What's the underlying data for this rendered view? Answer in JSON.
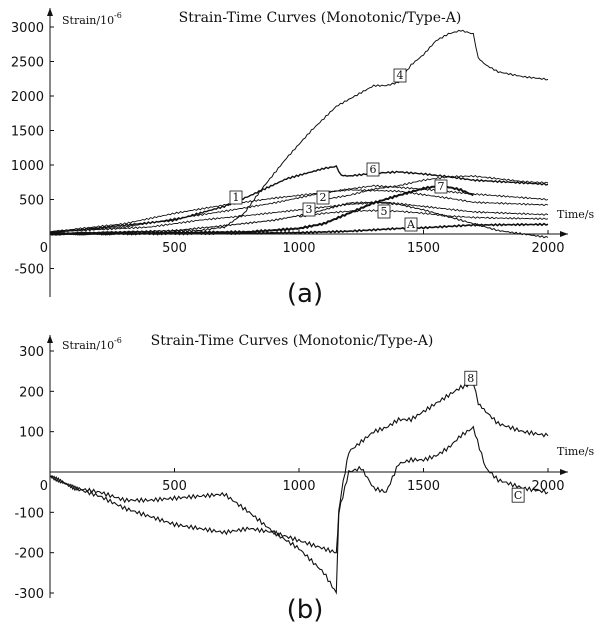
{
  "chart_data": [
    {
      "type": "line",
      "panel_label": "(a)",
      "title": "Strain-Time Curves (Monotonic/Type-A)",
      "ylabel": "Strain/10",
      "ylabel_exp": "-6",
      "xlabel": "Time/s",
      "xlim": [
        0,
        2000
      ],
      "ylim": [
        -800,
        3200
      ],
      "x_ticks": [
        500,
        1000,
        1500,
        2000
      ],
      "y_ticks": [
        -500,
        0,
        500,
        1000,
        1500,
        2000,
        2500,
        3000
      ],
      "series": [
        {
          "name": "1",
          "weight": 0.9,
          "x": [
            0,
            300,
            500,
            700,
            900,
            1100,
            1200,
            1400,
            1600,
            1700,
            2000
          ],
          "y": [
            30,
            150,
            300,
            420,
            520,
            600,
            640,
            620,
            520,
            460,
            420
          ]
        },
        {
          "name": "2",
          "weight": 0.9,
          "x": [
            0,
            300,
            500,
            700,
            900,
            1100,
            1200,
            1300,
            1500,
            1700,
            2000
          ],
          "y": [
            30,
            100,
            220,
            330,
            450,
            600,
            650,
            700,
            650,
            580,
            500
          ]
        },
        {
          "name": "3",
          "weight": 0.9,
          "x": [
            0,
            400,
            600,
            800,
            1000,
            1200,
            1350,
            1500,
            1700,
            2000
          ],
          "y": [
            30,
            100,
            200,
            270,
            350,
            430,
            460,
            400,
            320,
            280
          ]
        },
        {
          "name": "4",
          "weight": 1.0,
          "x": [
            0,
            600,
            700,
            780,
            850,
            950,
            1050,
            1150,
            1250,
            1300,
            1350,
            1400,
            1450,
            1500,
            1550,
            1600,
            1650,
            1700,
            1720,
            1750,
            1800,
            1900,
            2000
          ],
          "y": [
            10,
            50,
            100,
            300,
            650,
            1100,
            1500,
            1850,
            2050,
            2150,
            2150,
            2200,
            2450,
            2600,
            2800,
            2900,
            2950,
            2900,
            2550,
            2450,
            2350,
            2280,
            2240
          ]
        },
        {
          "name": "5",
          "weight": 1.0,
          "x": [
            0,
            500,
            700,
            900,
            1050,
            1200,
            1300,
            1400,
            1500,
            1600,
            1700,
            1800,
            2000
          ],
          "y": [
            0,
            50,
            120,
            200,
            300,
            450,
            460,
            430,
            350,
            250,
            150,
            50,
            -50
          ]
        },
        {
          "name": "6",
          "weight": 1.4,
          "x": [
            0,
            500,
            700,
            800,
            950,
            1100,
            1150,
            1170,
            1200,
            1300,
            1400,
            1500,
            1600,
            1700,
            2000
          ],
          "y": [
            20,
            200,
            400,
            550,
            800,
            950,
            980,
            850,
            840,
            880,
            900,
            870,
            830,
            780,
            720
          ]
        },
        {
          "name": "7",
          "weight": 2.0,
          "x": [
            0,
            800,
            1000,
            1100,
            1200,
            1300,
            1400,
            1500,
            1550,
            1600,
            1650,
            1700
          ],
          "y": [
            0,
            30,
            80,
            150,
            300,
            450,
            560,
            660,
            690,
            680,
            640,
            560
          ]
        },
        {
          "name": "A",
          "weight": 1.6,
          "x": [
            0,
            600,
            1000,
            1200,
            1300,
            1400,
            1500,
            1600,
            1700,
            2000
          ],
          "y": [
            0,
            5,
            20,
            40,
            60,
            80,
            90,
            110,
            130,
            140
          ]
        },
        {
          "name": "",
          "weight": 0.9,
          "x": [
            1100,
            1200,
            1300,
            1400,
            1500,
            1600,
            1700,
            1800,
            1900,
            2000
          ],
          "y": [
            500,
            560,
            650,
            700,
            780,
            830,
            840,
            800,
            760,
            740
          ]
        },
        {
          "name": "",
          "weight": 0.9,
          "x": [
            1000,
            1100,
            1200,
            1300,
            1400,
            1500,
            1600,
            1700,
            1800,
            2000
          ],
          "y": [
            250,
            300,
            330,
            340,
            330,
            300,
            260,
            240,
            230,
            220
          ]
        }
      ]
    },
    {
      "type": "line",
      "panel_label": "(b)",
      "title": "Strain-Time Curves (Monotonic/Type-A)",
      "ylabel": "Strain/10",
      "ylabel_exp": "-6",
      "xlabel": "Time/s",
      "xlim": [
        0,
        2000
      ],
      "ylim": [
        -330,
        340
      ],
      "x_ticks": [
        500,
        1000,
        1500,
        2000
      ],
      "y_ticks": [
        -300,
        -200,
        -100,
        0,
        100,
        200,
        300
      ],
      "series": [
        {
          "name": "8",
          "weight": 1.1,
          "x": [
            0,
            100,
            200,
            300,
            400,
            500,
            600,
            700,
            800,
            900,
            1000,
            1100,
            1150,
            1160,
            1170,
            1200,
            1250,
            1300,
            1350,
            1400,
            1450,
            1500,
            1550,
            1600,
            1650,
            1700,
            1720,
            1750,
            1800,
            1900,
            2000
          ],
          "y": [
            -10,
            -40,
            -60,
            -90,
            -110,
            -130,
            -140,
            -150,
            -140,
            -150,
            -170,
            -190,
            -200,
            -100,
            -50,
            50,
            75,
            100,
            110,
            130,
            130,
            150,
            170,
            190,
            210,
            220,
            170,
            150,
            120,
            100,
            90
          ]
        },
        {
          "name": "C",
          "weight": 1.1,
          "x": [
            0,
            100,
            200,
            300,
            400,
            500,
            600,
            700,
            800,
            900,
            1000,
            1100,
            1150,
            1160,
            1200,
            1250,
            1300,
            1350,
            1400,
            1450,
            1500,
            1550,
            1600,
            1650,
            1700,
            1750,
            1800,
            1900,
            2000
          ],
          "y": [
            -10,
            -40,
            -50,
            -70,
            -70,
            -65,
            -60,
            -55,
            -100,
            -150,
            -190,
            -250,
            -300,
            -100,
            0,
            10,
            -40,
            -50,
            20,
            30,
            30,
            40,
            60,
            90,
            110,
            10,
            -20,
            -40,
            -50
          ]
        }
      ],
      "markers": [
        {
          "name": "8",
          "x": 1690,
          "y": 230
        },
        {
          "name": "C",
          "x": 1880,
          "y": -60
        }
      ]
    }
  ]
}
